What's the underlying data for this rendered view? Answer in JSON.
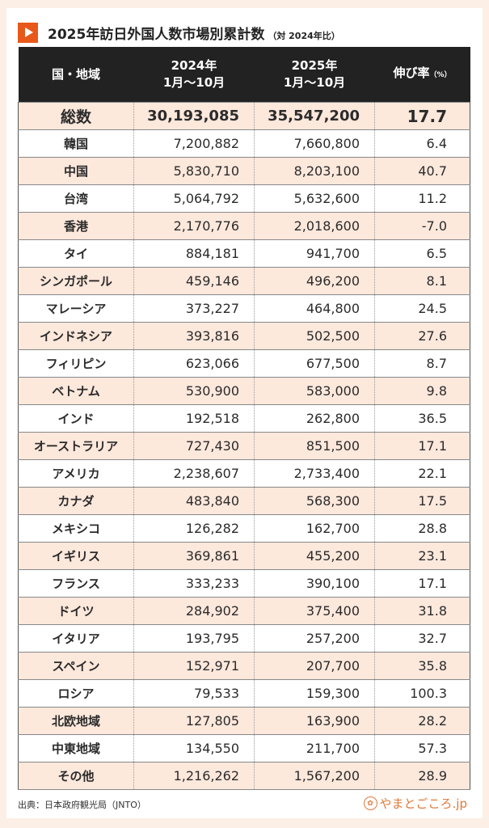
{
  "title": "2025年訪日外国人数市場別累計数",
  "title_note": "（対 2024年比）",
  "colors": {
    "accent": "#e8581a",
    "header_bg": "#222222",
    "row_alt": "#fde8dc",
    "page_bg": "#fcefe5"
  },
  "source": "出典：日本政府観光局（JNTO）",
  "logo_text": "やまとごころ.jp",
  "chart_data": {
    "type": "table",
    "columns": [
      {
        "line1": "国・地域",
        "line2": ""
      },
      {
        "line1": "2024年",
        "line2": "1月～10月"
      },
      {
        "line1": "2025年",
        "line2": "1月～10月"
      },
      {
        "line1": "伸び率",
        "line2": "（%）"
      }
    ],
    "rows": [
      [
        "総数",
        "30,193,085",
        "35,547,200",
        "17.7"
      ],
      [
        "韓国",
        "7,200,882",
        "7,660,800",
        "6.4"
      ],
      [
        "中国",
        "5,830,710",
        "8,203,100",
        "40.7"
      ],
      [
        "台湾",
        "5,064,792",
        "5,632,600",
        "11.2"
      ],
      [
        "香港",
        "2,170,776",
        "2,018,600",
        "-7.0"
      ],
      [
        "タイ",
        "884,181",
        "941,700",
        "6.5"
      ],
      [
        "シンガポール",
        "459,146",
        "496,200",
        "8.1"
      ],
      [
        "マレーシア",
        "373,227",
        "464,800",
        "24.5"
      ],
      [
        "インドネシア",
        "393,816",
        "502,500",
        "27.6"
      ],
      [
        "フィリピン",
        "623,066",
        "677,500",
        "8.7"
      ],
      [
        "ベトナム",
        "530,900",
        "583,000",
        "9.8"
      ],
      [
        "インド",
        "192,518",
        "262,800",
        "36.5"
      ],
      [
        "オーストラリア",
        "727,430",
        "851,500",
        "17.1"
      ],
      [
        "アメリカ",
        "2,238,607",
        "2,733,400",
        "22.1"
      ],
      [
        "カナダ",
        "483,840",
        "568,300",
        "17.5"
      ],
      [
        "メキシコ",
        "126,282",
        "162,700",
        "28.8"
      ],
      [
        "イギリス",
        "369,861",
        "455,200",
        "23.1"
      ],
      [
        "フランス",
        "333,233",
        "390,100",
        "17.1"
      ],
      [
        "ドイツ",
        "284,902",
        "375,400",
        "31.8"
      ],
      [
        "イタリア",
        "193,795",
        "257,200",
        "32.7"
      ],
      [
        "スペイン",
        "152,971",
        "207,700",
        "35.8"
      ],
      [
        "ロシア",
        "79,533",
        "159,300",
        "100.3"
      ],
      [
        "北欧地域",
        "127,805",
        "163,900",
        "28.2"
      ],
      [
        "中東地域",
        "134,550",
        "211,700",
        "57.3"
      ],
      [
        "その他",
        "1,216,262",
        "1,567,200",
        "28.9"
      ]
    ]
  }
}
